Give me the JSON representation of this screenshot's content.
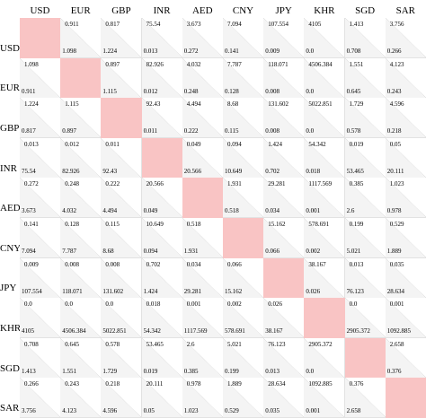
{
  "currencies": [
    "USD",
    "EUR",
    "GBP",
    "INR",
    "AED",
    "CNY",
    "JPY",
    "KHR",
    "SGD",
    "SAR"
  ],
  "matrix": [
    [
      null,
      "1.098",
      "1.224",
      "0.013",
      "0.272",
      "0.141",
      "0.009",
      "0.0",
      "0.708",
      "0.266"
    ],
    [
      "0.911",
      null,
      "1.115",
      "0.012",
      "0.248",
      "0.128",
      "0.008",
      "0.0",
      "0.645",
      "0.243"
    ],
    [
      "0.817",
      "0.897",
      null,
      "0.011",
      "0.222",
      "0.115",
      "0.008",
      "0.0",
      "0.578",
      "0.218"
    ],
    [
      "75.54",
      "82.926",
      "92.43",
      null,
      "20.566",
      "10.649",
      "0.702",
      "0.018",
      "53.465",
      "20.111"
    ],
    [
      "3.673",
      "4.032",
      "4.494",
      "0.049",
      null,
      "0.518",
      "0.034",
      "0.001",
      "2.6",
      "0.978"
    ],
    [
      "7.094",
      "7.787",
      "8.68",
      "0.094",
      "1.931",
      null,
      "0.066",
      "0.002",
      "5.021",
      "1.889"
    ],
    [
      "107.554",
      "118.071",
      "131.602",
      "1.424",
      "29.281",
      "15.162",
      null,
      "0.026",
      "76.123",
      "28.634"
    ],
    [
      "4105",
      "4506.384",
      "5022.851",
      "54.342",
      "1117.569",
      "578.691",
      "38.167",
      null,
      "2905.372",
      "1092.885"
    ],
    [
      "1.413",
      "1.551",
      "1.729",
      "0.019",
      "0.385",
      "0.199",
      "0.013",
      "0.0",
      null,
      "0.376"
    ],
    [
      "3.756",
      "4.123",
      "4.596",
      "0.05",
      "1.023",
      "0.529",
      "0.035",
      "0.001",
      "2.658",
      null
    ]
  ]
}
